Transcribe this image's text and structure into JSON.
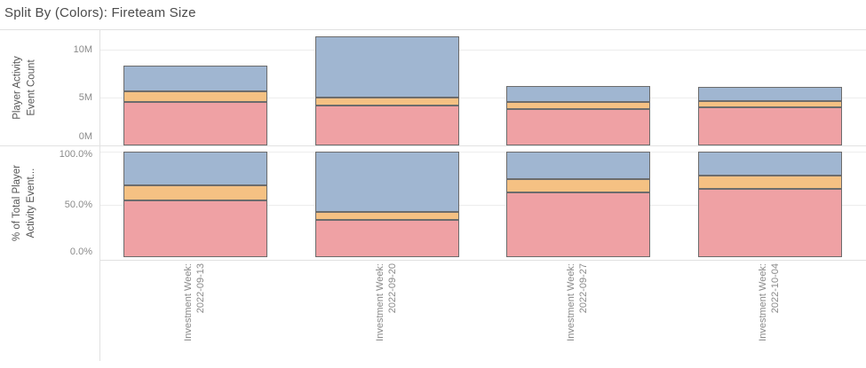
{
  "title": "Split By (Colors): Fireteam Size",
  "palette": {
    "pink": "#efa1a4",
    "orange": "#f5c183",
    "blue": "#a0b6d1",
    "mark_border": "#6c6c6c"
  },
  "x_axis": {
    "tick_labels": [
      {
        "line1": "Investment Week:",
        "line2": "2022-09-13"
      },
      {
        "line1": "Investment Week:",
        "line2": "2022-09-20"
      },
      {
        "line1": "Investment Week:",
        "line2": "2022-09-27"
      },
      {
        "line1": "Investment Week:",
        "line2": "2022-10-04"
      }
    ]
  },
  "chart_data": [
    {
      "type": "bar",
      "stacked": true,
      "axis_title": "Player Activity Event Count",
      "axis_title_lines": [
        "Player Activity",
        "Event Count"
      ],
      "categories": [
        "Investment Week: 2022-09-13",
        "Investment Week: 2022-09-20",
        "Investment Week: 2022-09-27",
        "Investment Week: 2022-10-04"
      ],
      "unit": "millions of events",
      "ylim": [
        0,
        12.1
      ],
      "grid": true,
      "y_ticks": [
        {
          "label": "10M",
          "value": 10
        },
        {
          "label": "5M",
          "value": 5
        },
        {
          "label": "0M",
          "value": 0
        }
      ],
      "series": [
        {
          "name": "pink-segment",
          "color": "pink",
          "values": [
            4.5,
            4.15,
            3.8,
            4.0
          ]
        },
        {
          "name": "orange-segment",
          "color": "orange",
          "values": [
            1.15,
            0.85,
            0.75,
            0.65
          ]
        },
        {
          "name": "blue-segment",
          "color": "blue",
          "values": [
            2.7,
            6.35,
            1.65,
            1.45
          ]
        }
      ],
      "totals": [
        8.35,
        11.35,
        6.2,
        6.1
      ]
    },
    {
      "type": "bar",
      "stacked": true,
      "axis_title": "% of Total Player Activity Event...",
      "axis_title_lines": [
        "% of Total Player",
        "Activity Event..."
      ],
      "categories": [
        "Investment Week: 2022-09-13",
        "Investment Week: 2022-09-20",
        "Investment Week: 2022-09-27",
        "Investment Week: 2022-10-04"
      ],
      "unit": "%",
      "ylim": [
        0,
        100
      ],
      "grid": true,
      "y_ticks": [
        {
          "label": "100.0%",
          "value": 100
        },
        {
          "label": "50.0%",
          "value": 50
        },
        {
          "label": "0.0%",
          "value": 0
        }
      ],
      "series": [
        {
          "name": "pink-segment",
          "color": "pink",
          "values": [
            54,
            35,
            61,
            65
          ]
        },
        {
          "name": "orange-segment",
          "color": "orange",
          "values": [
            13.7,
            7.5,
            13,
            12
          ]
        },
        {
          "name": "blue-segment",
          "color": "blue",
          "values": [
            32.3,
            57.5,
            26,
            23
          ]
        }
      ],
      "totals": [
        100,
        100,
        100,
        100
      ]
    }
  ]
}
